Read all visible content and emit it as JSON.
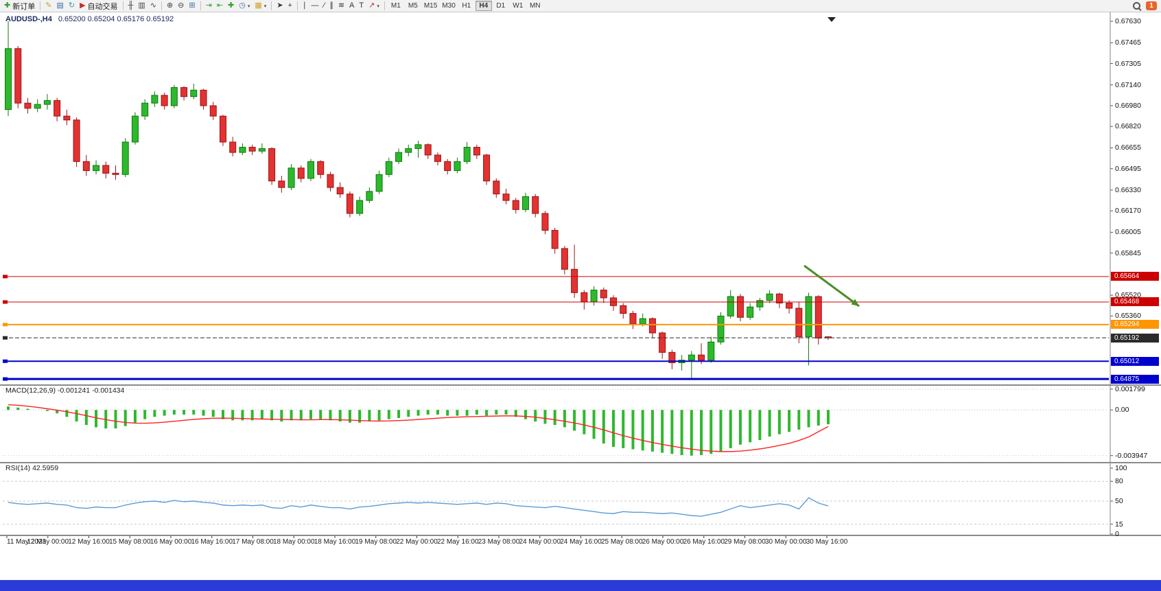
{
  "toolbar": {
    "buttons": [
      {
        "name": "new-order-button",
        "label": "新订单",
        "glyph": "✚",
        "glyph_color": "#2da12d"
      },
      {
        "type": "sep"
      },
      {
        "name": "metaeditor-button",
        "glyph": "✎",
        "glyph_color": "#c9a227"
      },
      {
        "name": "market-watch-button",
        "glyph": "▤",
        "glyph_color": "#3a6ea5"
      },
      {
        "name": "refresh-button",
        "glyph": "↻",
        "glyph_color": "#2e9e9e"
      },
      {
        "name": "autotrading-button",
        "label": "自动交易",
        "glyph": "▶",
        "glyph_color": "#c03030"
      },
      {
        "type": "sep"
      },
      {
        "name": "bar-chart-button",
        "glyph": "╫",
        "glyph_color": "#444444"
      },
      {
        "name": "candlestick-chart-button",
        "glyph": "▥",
        "glyph_color": "#444444"
      },
      {
        "name": "line-chart-button",
        "glyph": "∿",
        "glyph_color": "#444444"
      },
      {
        "type": "sep"
      },
      {
        "name": "zoom-in-button",
        "glyph": "⊕",
        "glyph_color": "#444444"
      },
      {
        "name": "zoom-out-button",
        "glyph": "⊖",
        "glyph_color": "#444444"
      },
      {
        "name": "tile-windows-button",
        "glyph": "⊞",
        "glyph_color": "#3a6ea5"
      },
      {
        "type": "sep"
      },
      {
        "name": "auto-scroll-button",
        "glyph": "⇥",
        "glyph_color": "#2da12d"
      },
      {
        "name": "chart-shift-button",
        "glyph": "⇤",
        "glyph_color": "#2da12d"
      },
      {
        "name": "indicators-button",
        "glyph": "✚",
        "glyph_color": "#2da12d"
      },
      {
        "name": "periods-dropdown-button",
        "glyph": "◷",
        "glyph_color": "#3a6ea5",
        "has_caret": true
      },
      {
        "name": "templates-dropdown-button",
        "glyph": "▦",
        "glyph_color": "#c9a227",
        "has_caret": true
      },
      {
        "type": "sep"
      },
      {
        "name": "cursor-button",
        "glyph": "➤",
        "glyph_color": "#333333"
      },
      {
        "name": "crosshair-button",
        "glyph": "+",
        "glyph_color": "#333333"
      },
      {
        "type": "sep"
      },
      {
        "name": "vertical-line-button",
        "glyph": "∣",
        "glyph_color": "#333333"
      },
      {
        "name": "horizontal-line-button",
        "glyph": "—",
        "glyph_color": "#333333"
      },
      {
        "name": "trendline-button",
        "glyph": "∕",
        "glyph_color": "#333333"
      },
      {
        "name": "channel-button",
        "glyph": "∥",
        "glyph_color": "#333333"
      },
      {
        "name": "fibonacci-button",
        "glyph": "≋",
        "glyph_color": "#333333"
      },
      {
        "name": "text-button",
        "glyph": "A",
        "glyph_color": "#333333"
      },
      {
        "name": "label-button",
        "glyph": "T",
        "glyph_color": "#333333"
      },
      {
        "name": "arrows-tool-button",
        "glyph": "↗",
        "glyph_color": "#c03030",
        "has_caret": true
      },
      {
        "type": "sep"
      }
    ],
    "timeframes": [
      "M1",
      "M5",
      "M15",
      "M30",
      "H1",
      "H4",
      "D1",
      "W1",
      "MN"
    ],
    "active_timeframe": "H4",
    "notification_count": "1"
  },
  "chart": {
    "title_symbol": "AUDUSD-,H4",
    "title_ohlc": "0.65200 0.65204 0.65176 0.65192"
  },
  "chart_data": {
    "type": "candlestick",
    "symbol": "AUDUSD-",
    "timeframe": "H4",
    "ohlc_display": {
      "open": "0.65200",
      "high": "0.65204",
      "low": "0.65176",
      "close": "0.65192"
    },
    "main": {
      "ylim": [
        0.64844,
        0.67662
      ],
      "axis_labels": [
        "0.67630",
        "0.67465",
        "0.67305",
        "0.67140",
        "0.66980",
        "0.66820",
        "0.66655",
        "0.66495",
        "0.66330",
        "0.66170",
        "0.66005",
        "0.65845",
        "0.65520",
        "0.65360"
      ],
      "colors": {
        "up": "#2eb82e",
        "down": "#e23232",
        "up_border": "#0c7a0c",
        "down_border": "#9a1414"
      },
      "hlines": [
        {
          "price": 0.65664,
          "label": "0.65664",
          "color": "#cc0000",
          "width": 1
        },
        {
          "price": 0.65468,
          "label": "0.65468",
          "color": "#cc0000",
          "width": 1
        },
        {
          "price": 0.65294,
          "label": "0.65294",
          "color": "#ff9500",
          "width": 2
        },
        {
          "price": 0.65192,
          "label": "0.65192",
          "color": "#2b2b2b",
          "width": 1,
          "style": "dash"
        },
        {
          "price": 0.65012,
          "label": "0.65012",
          "color": "#0000cc",
          "width": 2
        },
        {
          "price": 0.64875,
          "label": "0.64875",
          "color": "#0000cc",
          "width": 3
        }
      ],
      "candles": [
        [
          0.6695,
          0.6763,
          0.669,
          0.6742
        ],
        [
          0.6742,
          0.6744,
          0.6696,
          0.67
        ],
        [
          0.67,
          0.6704,
          0.6692,
          0.6696
        ],
        [
          0.6696,
          0.6703,
          0.6693,
          0.6699
        ],
        [
          0.6699,
          0.6707,
          0.6695,
          0.6702
        ],
        [
          0.6702,
          0.6704,
          0.6686,
          0.669
        ],
        [
          0.669,
          0.6695,
          0.6683,
          0.6687
        ],
        [
          0.6687,
          0.6689,
          0.6651,
          0.6655
        ],
        [
          0.6655,
          0.666,
          0.6644,
          0.6648
        ],
        [
          0.6648,
          0.6656,
          0.6645,
          0.6652
        ],
        [
          0.6652,
          0.6655,
          0.6642,
          0.6646
        ],
        [
          0.6646,
          0.6652,
          0.6641,
          0.6645
        ],
        [
          0.6645,
          0.6673,
          0.6643,
          0.667
        ],
        [
          0.667,
          0.6693,
          0.6668,
          0.669
        ],
        [
          0.669,
          0.6703,
          0.6687,
          0.67
        ],
        [
          0.67,
          0.6709,
          0.6697,
          0.6706
        ],
        [
          0.6706,
          0.6708,
          0.6695,
          0.6698
        ],
        [
          0.6698,
          0.6714,
          0.6696,
          0.6712
        ],
        [
          0.6712,
          0.6713,
          0.6702,
          0.6705
        ],
        [
          0.6705,
          0.6715,
          0.6703,
          0.671
        ],
        [
          0.671,
          0.6711,
          0.6695,
          0.6698
        ],
        [
          0.6698,
          0.6701,
          0.6687,
          0.669
        ],
        [
          0.669,
          0.6691,
          0.6667,
          0.667
        ],
        [
          0.667,
          0.6674,
          0.6659,
          0.6662
        ],
        [
          0.6662,
          0.6669,
          0.666,
          0.6666
        ],
        [
          0.6666,
          0.6668,
          0.666,
          0.6663
        ],
        [
          0.6663,
          0.6669,
          0.6661,
          0.6665
        ],
        [
          0.6665,
          0.6666,
          0.6637,
          0.664
        ],
        [
          0.664,
          0.6644,
          0.6631,
          0.6635
        ],
        [
          0.6635,
          0.6653,
          0.6633,
          0.665
        ],
        [
          0.665,
          0.6652,
          0.6639,
          0.6642
        ],
        [
          0.6642,
          0.6657,
          0.664,
          0.6655
        ],
        [
          0.6655,
          0.6656,
          0.6642,
          0.6645
        ],
        [
          0.6645,
          0.6647,
          0.6632,
          0.6635
        ],
        [
          0.6635,
          0.6639,
          0.6627,
          0.663
        ],
        [
          0.663,
          0.6632,
          0.6612,
          0.6615
        ],
        [
          0.6615,
          0.6628,
          0.6613,
          0.6625
        ],
        [
          0.6625,
          0.6635,
          0.6623,
          0.6632
        ],
        [
          0.6632,
          0.6648,
          0.663,
          0.6645
        ],
        [
          0.6645,
          0.6658,
          0.6643,
          0.6655
        ],
        [
          0.6655,
          0.6665,
          0.6653,
          0.6662
        ],
        [
          0.6662,
          0.6668,
          0.6659,
          0.6665
        ],
        [
          0.6665,
          0.6671,
          0.6658,
          0.6668
        ],
        [
          0.6668,
          0.6669,
          0.6657,
          0.666
        ],
        [
          0.666,
          0.6662,
          0.6652,
          0.6655
        ],
        [
          0.6655,
          0.6657,
          0.6645,
          0.6648
        ],
        [
          0.6648,
          0.6658,
          0.6646,
          0.6655
        ],
        [
          0.6655,
          0.667,
          0.6653,
          0.6666
        ],
        [
          0.6666,
          0.6668,
          0.6657,
          0.666
        ],
        [
          0.666,
          0.6661,
          0.6637,
          0.664
        ],
        [
          0.664,
          0.6642,
          0.6627,
          0.663
        ],
        [
          0.663,
          0.6634,
          0.6622,
          0.6625
        ],
        [
          0.6625,
          0.6627,
          0.6615,
          0.6618
        ],
        [
          0.6618,
          0.6631,
          0.6616,
          0.6628
        ],
        [
          0.6628,
          0.663,
          0.6612,
          0.6615
        ],
        [
          0.6615,
          0.6617,
          0.6599,
          0.6602
        ],
        [
          0.6602,
          0.6604,
          0.6584,
          0.6588
        ],
        [
          0.6588,
          0.659,
          0.6568,
          0.6572
        ],
        [
          0.6572,
          0.6591,
          0.655,
          0.6554
        ],
        [
          0.6554,
          0.6556,
          0.6541,
          0.6547
        ],
        [
          0.6547,
          0.6559,
          0.6544,
          0.6556
        ],
        [
          0.6556,
          0.6558,
          0.6546,
          0.655
        ],
        [
          0.655,
          0.6552,
          0.654,
          0.6544
        ],
        [
          0.6544,
          0.6546,
          0.6534,
          0.6538
        ],
        [
          0.6538,
          0.654,
          0.6526,
          0.653
        ],
        [
          0.653,
          0.6538,
          0.6528,
          0.6534
        ],
        [
          0.6534,
          0.6535,
          0.6519,
          0.6523
        ],
        [
          0.6523,
          0.6524,
          0.6503,
          0.6508
        ],
        [
          0.6508,
          0.651,
          0.6495,
          0.65
        ],
        [
          0.65,
          0.6506,
          0.6494,
          0.6502
        ],
        [
          0.6502,
          0.6509,
          0.6488,
          0.6506
        ],
        [
          0.6506,
          0.6515,
          0.6499,
          0.6502
        ],
        [
          0.6502,
          0.652,
          0.65,
          0.6516
        ],
        [
          0.6516,
          0.6539,
          0.6514,
          0.6536
        ],
        [
          0.6536,
          0.6556,
          0.6534,
          0.6551
        ],
        [
          0.6551,
          0.6553,
          0.6532,
          0.6535
        ],
        [
          0.6535,
          0.6546,
          0.6533,
          0.6543
        ],
        [
          0.6543,
          0.655,
          0.654,
          0.6548
        ],
        [
          0.6548,
          0.6556,
          0.6546,
          0.6553
        ],
        [
          0.6553,
          0.6554,
          0.6542,
          0.6546
        ],
        [
          0.6546,
          0.6548,
          0.6538,
          0.6542
        ],
        [
          0.6542,
          0.6547,
          0.6515,
          0.652
        ],
        [
          0.652,
          0.6554,
          0.6498,
          0.6551
        ],
        [
          0.6551,
          0.6552,
          0.6514,
          0.6519
        ],
        [
          0.652,
          0.65204,
          0.65176,
          0.65192
        ]
      ],
      "time_labels": [
        "11 May 2023",
        "12 May 00:00",
        "12 May 16:00",
        "15 May 08:00",
        "16 May 00:00",
        "16 May 16:00",
        "17 May 08:00",
        "18 May 00:00",
        "18 May 16:00",
        "19 May 08:00",
        "22 May 00:00",
        "22 May 16:00",
        "23 May 08:00",
        "24 May 00:00",
        "24 May 16:00",
        "25 May 08:00",
        "26 May 00:00",
        "26 May 16:00",
        "29 May 08:00",
        "30 May 00:00",
        "30 May 16:00"
      ]
    },
    "macd": {
      "label": "MACD(12,26,9) -0.001241 -0.001434",
      "ylim": [
        -0.0042,
        0.00185
      ],
      "axis_labels": [
        {
          "value": 0.001799,
          "text": "0.001799"
        },
        {
          "value": 0,
          "text": "0.00"
        },
        {
          "value": -0.003947,
          "text": "-0.003947"
        }
      ],
      "colors": {
        "histogram": "#2eb82e",
        "signal": "#ff2020"
      },
      "histogram": [
        0.0003,
        0.0002,
        0.0001,
        0,
        -0.0001,
        -0.0003,
        -0.0006,
        -0.001,
        -0.0013,
        -0.0015,
        -0.0016,
        -0.0016,
        -0.0014,
        -0.0011,
        -0.0008,
        -0.0006,
        -0.0005,
        -0.0004,
        -0.0004,
        -0.0004,
        -0.0005,
        -0.0006,
        -0.0008,
        -0.0009,
        -0.0009,
        -0.0009,
        -0.0008,
        -0.0009,
        -0.001,
        -0.0009,
        -0.0009,
        -0.0008,
        -0.0008,
        -0.0009,
        -0.001,
        -0.0011,
        -0.0011,
        -0.001,
        -0.0009,
        -0.0008,
        -0.0007,
        -0.0006,
        -0.0005,
        -0.0004,
        -0.0004,
        -0.0005,
        -0.0005,
        -0.0005,
        -0.0004,
        -0.0005,
        -0.0004,
        -0.0004,
        -0.0006,
        -0.0008,
        -0.001,
        -0.0012,
        -0.0013,
        -0.0015,
        -0.0018,
        -0.0021,
        -0.0025,
        -0.0029,
        -0.0032,
        -0.0033,
        -0.0034,
        -0.0035,
        -0.0036,
        -0.0037,
        -0.0038,
        -0.0039,
        -0.00395,
        -0.0039,
        -0.0038,
        -0.0036,
        -0.0033,
        -0.003,
        -0.0028,
        -0.0026,
        -0.0023,
        -0.0021,
        -0.0019,
        -0.0017,
        -0.0015,
        -0.00135,
        -0.001241
      ],
      "signal": [
        0.00045,
        0.0004,
        0.00032,
        0.00022,
        0.0001,
        -2e-05,
        -0.00016,
        -0.00032,
        -0.0005,
        -0.00068,
        -0.00084,
        -0.00098,
        -0.00108,
        -0.00114,
        -0.00115,
        -0.00112,
        -0.00106,
        -0.00098,
        -0.0009,
        -0.00082,
        -0.00076,
        -0.00072,
        -0.00071,
        -0.00072,
        -0.00074,
        -0.00077,
        -0.00079,
        -0.0008,
        -0.00082,
        -0.00084,
        -0.00085,
        -0.00085,
        -0.00084,
        -0.00084,
        -0.00085,
        -0.00088,
        -0.00092,
        -0.00095,
        -0.00096,
        -0.00095,
        -0.00092,
        -0.00088,
        -0.00083,
        -0.00077,
        -0.00071,
        -0.00066,
        -0.00062,
        -0.00059,
        -0.00057,
        -0.00055,
        -0.00053,
        -0.00051,
        -0.00052,
        -0.00056,
        -0.00063,
        -0.00073,
        -0.00085,
        -0.00098,
        -0.00113,
        -0.0013,
        -0.0015,
        -0.00173,
        -0.00198,
        -0.00222,
        -0.00244,
        -0.00264,
        -0.00282,
        -0.00298,
        -0.00313,
        -0.00327,
        -0.00339,
        -0.00349,
        -0.00356,
        -0.0036,
        -0.0036,
        -0.00356,
        -0.00348,
        -0.00337,
        -0.00323,
        -0.00307,
        -0.00289,
        -0.00264,
        -0.00234,
        -0.00188,
        -0.001434
      ]
    },
    "rsi": {
      "label": "RSI(14) 42.5959",
      "ylim": [
        0,
        100
      ],
      "levels": [
        80,
        50,
        15
      ],
      "axis_labels": [
        {
          "value": 100,
          "text": "100"
        },
        {
          "value": 80,
          "text": "80"
        },
        {
          "value": 50,
          "text": "50"
        },
        {
          "value": 15,
          "text": "15"
        },
        {
          "value": 0,
          "text": "0"
        }
      ],
      "color": "#5b9bd5",
      "values": [
        48,
        46,
        45,
        46,
        47,
        45,
        44,
        40,
        39,
        41,
        40,
        40,
        44,
        47,
        49,
        50,
        48,
        51,
        49,
        50,
        48,
        47,
        44,
        43,
        44,
        43,
        44,
        40,
        39,
        43,
        41,
        44,
        42,
        40,
        40,
        38,
        41,
        42,
        44,
        46,
        47,
        48,
        47,
        48,
        47,
        46,
        45,
        46,
        47,
        45,
        47,
        46,
        43,
        42,
        41,
        40,
        42,
        40,
        38,
        36,
        34,
        32,
        31,
        34,
        33,
        33,
        32,
        31,
        32,
        30,
        28,
        27,
        30,
        33,
        38,
        43,
        40,
        42,
        44,
        46,
        44,
        38,
        55,
        47,
        42.5959
      ]
    },
    "annotations": [
      {
        "type": "arrow",
        "from": [
          1172,
          369
        ],
        "to": [
          1252,
          428
        ],
        "color": "#4a8f2a",
        "width": 3
      }
    ]
  }
}
